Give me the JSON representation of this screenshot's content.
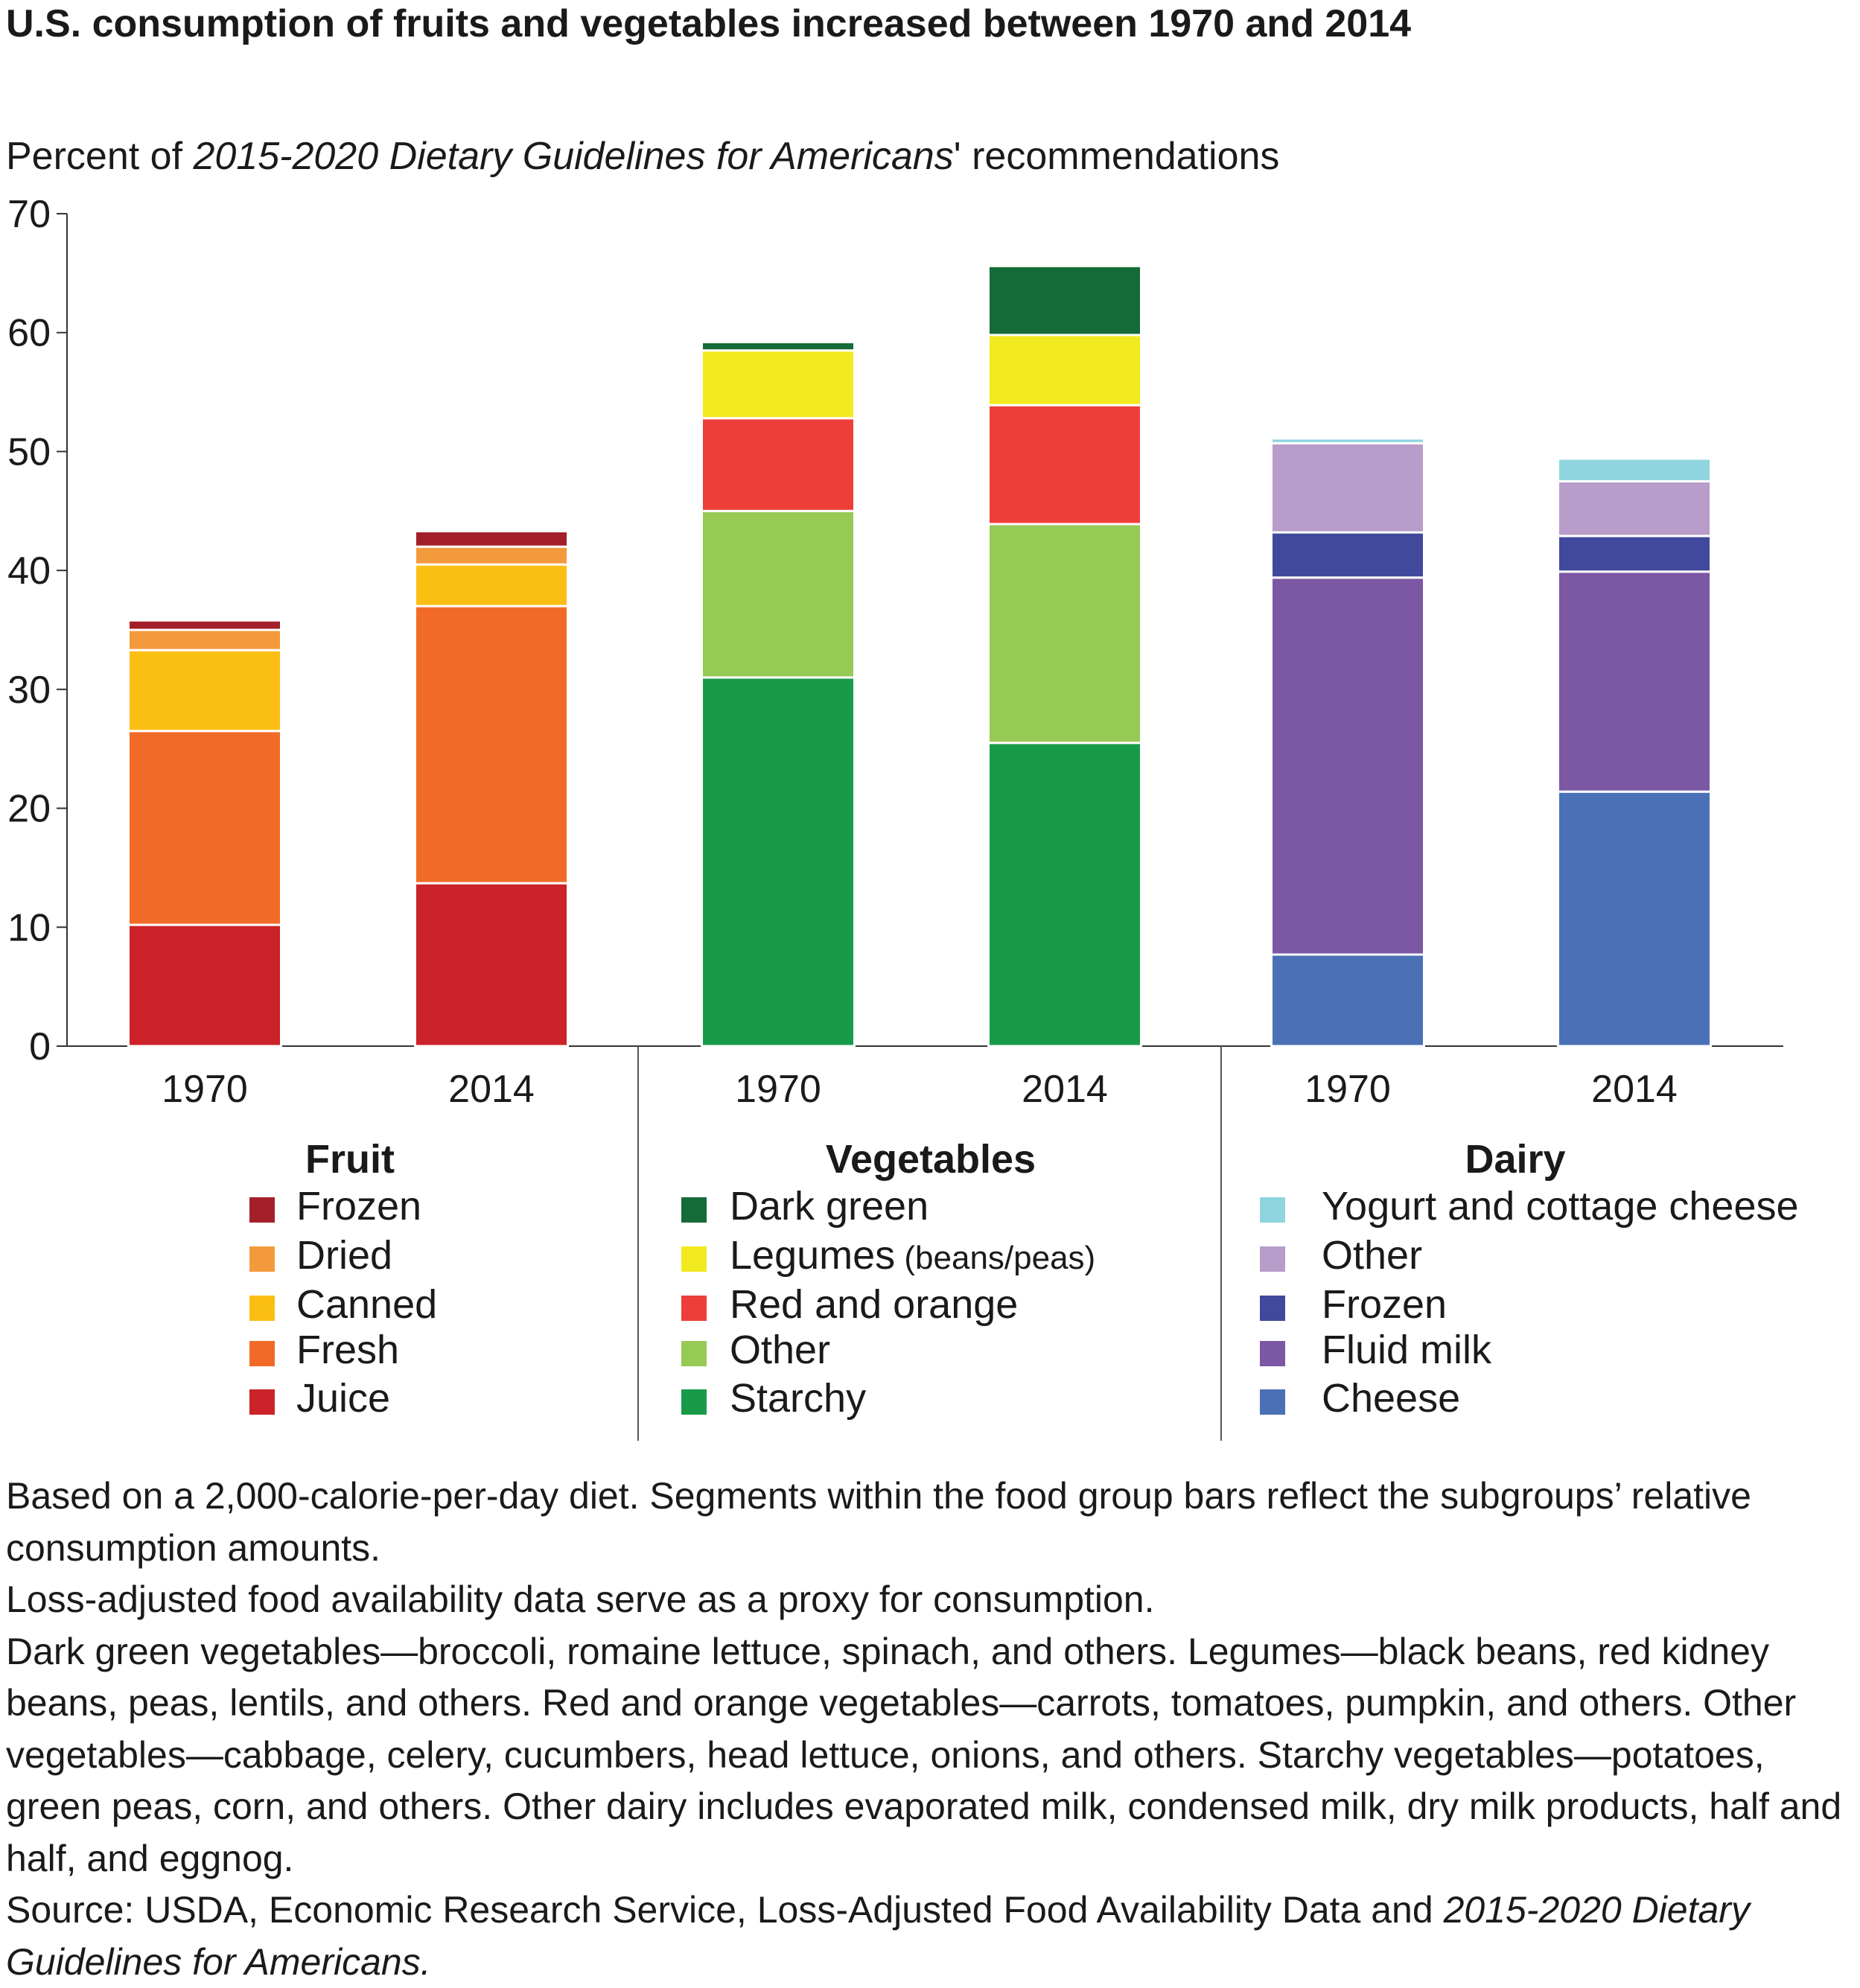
{
  "title": "U.S. consumption of fruits and vegetables increased between 1970 and 2014",
  "colors": {
    "fruit_frozen": "#a3202a",
    "fruit_dried": "#f39a3d",
    "fruit_canned": "#fbbf14",
    "fruit_fresh": "#f26a28",
    "fruit_juice": "#cc2229",
    "veg_dark_green": "#156b38",
    "veg_legumes": "#f1ea1e",
    "veg_red_orange": "#ee3e3a",
    "veg_other": "#97c955",
    "veg_starchy": "#189b48",
    "dairy_yogurt": "#8fd5e0",
    "dairy_other": "#b89cc9",
    "dairy_frozen": "#40499c",
    "dairy_fluid_milk": "#7b57a4",
    "dairy_cheese": "#4a71b5"
  },
  "chart_data": {
    "type": "bar",
    "stacked": true,
    "title": "U.S. consumption of fruits and vegetables increased between 1970 and 2014",
    "ylabel_prefix": "Percent of ",
    "ylabel_italic": "2015-2020 Dietary Guidelines for Americans",
    "ylabel_suffix": "' recommendations",
    "ylim": [
      0,
      70
    ],
    "yticks": [
      0,
      10,
      20,
      30,
      40,
      50,
      60,
      70
    ],
    "grid": false,
    "groups": [
      {
        "name": "Fruit",
        "categories": [
          "1970",
          "2014"
        ],
        "series": [
          {
            "name": "Juice",
            "color_key": "fruit_juice",
            "values": [
              10.2,
              13.7
            ]
          },
          {
            "name": "Fresh",
            "color_key": "fruit_fresh",
            "values": [
              16.3,
              23.3
            ]
          },
          {
            "name": "Canned",
            "color_key": "fruit_canned",
            "values": [
              6.8,
              3.5
            ]
          },
          {
            "name": "Dried",
            "color_key": "fruit_dried",
            "values": [
              1.7,
              1.5
            ]
          },
          {
            "name": "Frozen",
            "color_key": "fruit_frozen",
            "values": [
              0.8,
              1.3
            ]
          }
        ],
        "legend": [
          {
            "label": "Frozen",
            "color_key": "fruit_frozen"
          },
          {
            "label": "Dried",
            "color_key": "fruit_dried"
          },
          {
            "label": "Canned",
            "color_key": "fruit_canned"
          },
          {
            "label": "Fresh",
            "color_key": "fruit_fresh"
          },
          {
            "label": "Juice",
            "color_key": "fruit_juice"
          }
        ]
      },
      {
        "name": "Vegetables",
        "categories": [
          "1970",
          "2014"
        ],
        "series": [
          {
            "name": "Starchy",
            "color_key": "veg_starchy",
            "values": [
              31.0,
              25.5
            ]
          },
          {
            "name": "Other",
            "color_key": "veg_other",
            "values": [
              14.0,
              18.4
            ]
          },
          {
            "name": "Red and orange",
            "color_key": "veg_red_orange",
            "values": [
              7.8,
              10.0
            ]
          },
          {
            "name": "Legumes (beans/peas)",
            "color_key": "veg_legumes",
            "values": [
              5.7,
              5.9
            ]
          },
          {
            "name": "Dark green",
            "color_key": "veg_dark_green",
            "values": [
              0.7,
              5.8
            ]
          }
        ],
        "legend": [
          {
            "label": "Dark green",
            "color_key": "veg_dark_green"
          },
          {
            "label": "Legumes",
            "suffix": " (beans/peas)",
            "color_key": "veg_legumes"
          },
          {
            "label": "Red and orange",
            "color_key": "veg_red_orange"
          },
          {
            "label": "Other",
            "color_key": "veg_other"
          },
          {
            "label": "Starchy",
            "color_key": "veg_starchy"
          }
        ]
      },
      {
        "name": "Dairy",
        "categories": [
          "1970",
          "2014"
        ],
        "series": [
          {
            "name": "Cheese",
            "color_key": "dairy_cheese",
            "values": [
              7.7,
              21.4
            ]
          },
          {
            "name": "Fluid milk",
            "color_key": "dairy_fluid_milk",
            "values": [
              31.7,
              18.5
            ]
          },
          {
            "name": "Frozen",
            "color_key": "dairy_frozen",
            "values": [
              3.8,
              3.0
            ]
          },
          {
            "name": "Other",
            "color_key": "dairy_other",
            "values": [
              7.5,
              4.6
            ]
          },
          {
            "name": "Yogurt and cottage cheese",
            "color_key": "dairy_yogurt",
            "values": [
              0.4,
              1.9
            ]
          }
        ],
        "legend": [
          {
            "label": "Yogurt and cottage cheese",
            "color_key": "dairy_yogurt"
          },
          {
            "label": "Other",
            "color_key": "dairy_other"
          },
          {
            "label": "Frozen",
            "color_key": "dairy_frozen"
          },
          {
            "label": "Fluid milk",
            "color_key": "dairy_fluid_milk"
          },
          {
            "label": "Cheese",
            "color_key": "dairy_cheese"
          }
        ]
      }
    ]
  },
  "notes": {
    "note1": "Based on a 2,000-calorie-per-day diet. Segments within the food group bars reflect the subgroups’ relative consumption amounts.",
    "note2": "Loss-adjusted food availability data serve as a proxy for consumption.",
    "note3": "Dark green vegetables—broccoli, romaine lettuce, spinach, and others. Legumes—black beans, red kidney beans, peas, lentils, and others. Red and orange vegetables—carrots, tomatoes, pumpkin, and others. Other vegetables—cabbage, celery, cucumbers, head lettuce, onions, and others. Starchy vegetables—potatoes, green peas, corn, and others. Other dairy includes evaporated milk, condensed milk, dry milk products, half and half, and eggnog.",
    "source_prefix": "Source: USDA, Economic Research Service, Loss-Adjusted Food Availability Data and ",
    "source_italic": "2015-2020 Dietary Guidelines for Americans."
  }
}
